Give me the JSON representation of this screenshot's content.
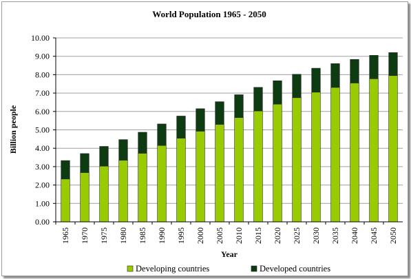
{
  "chart_data": {
    "type": "bar",
    "stacked": true,
    "title": "World Population 1965 - 2050",
    "xlabel": "Year",
    "ylabel": "Billion people",
    "ylim": [
      0,
      10
    ],
    "yticks": [
      "0.00",
      "1.00",
      "2.00",
      "3.00",
      "4.00",
      "5.00",
      "6.00",
      "7.00",
      "8.00",
      "9.00",
      "10.00"
    ],
    "categories": [
      "1965",
      "1970",
      "1975",
      "1980",
      "1985",
      "1990",
      "1995",
      "2000",
      "2005",
      "2010",
      "2015",
      "2020",
      "2025",
      "2030",
      "2035",
      "2040",
      "2045",
      "2050"
    ],
    "series": [
      {
        "name": "Developing countries",
        "color": "#99cc00",
        "values": [
          2.33,
          2.68,
          3.03,
          3.35,
          3.73,
          4.15,
          4.55,
          4.93,
          5.3,
          5.67,
          6.03,
          6.4,
          6.75,
          7.05,
          7.31,
          7.55,
          7.78,
          7.95
        ]
      },
      {
        "name": "Developed countries",
        "color": "#0d3b12",
        "values": [
          1.0,
          1.03,
          1.07,
          1.12,
          1.14,
          1.17,
          1.2,
          1.22,
          1.23,
          1.24,
          1.28,
          1.27,
          1.27,
          1.3,
          1.29,
          1.28,
          1.27,
          1.25
        ]
      }
    ],
    "grid": true,
    "legend": "bottom"
  }
}
